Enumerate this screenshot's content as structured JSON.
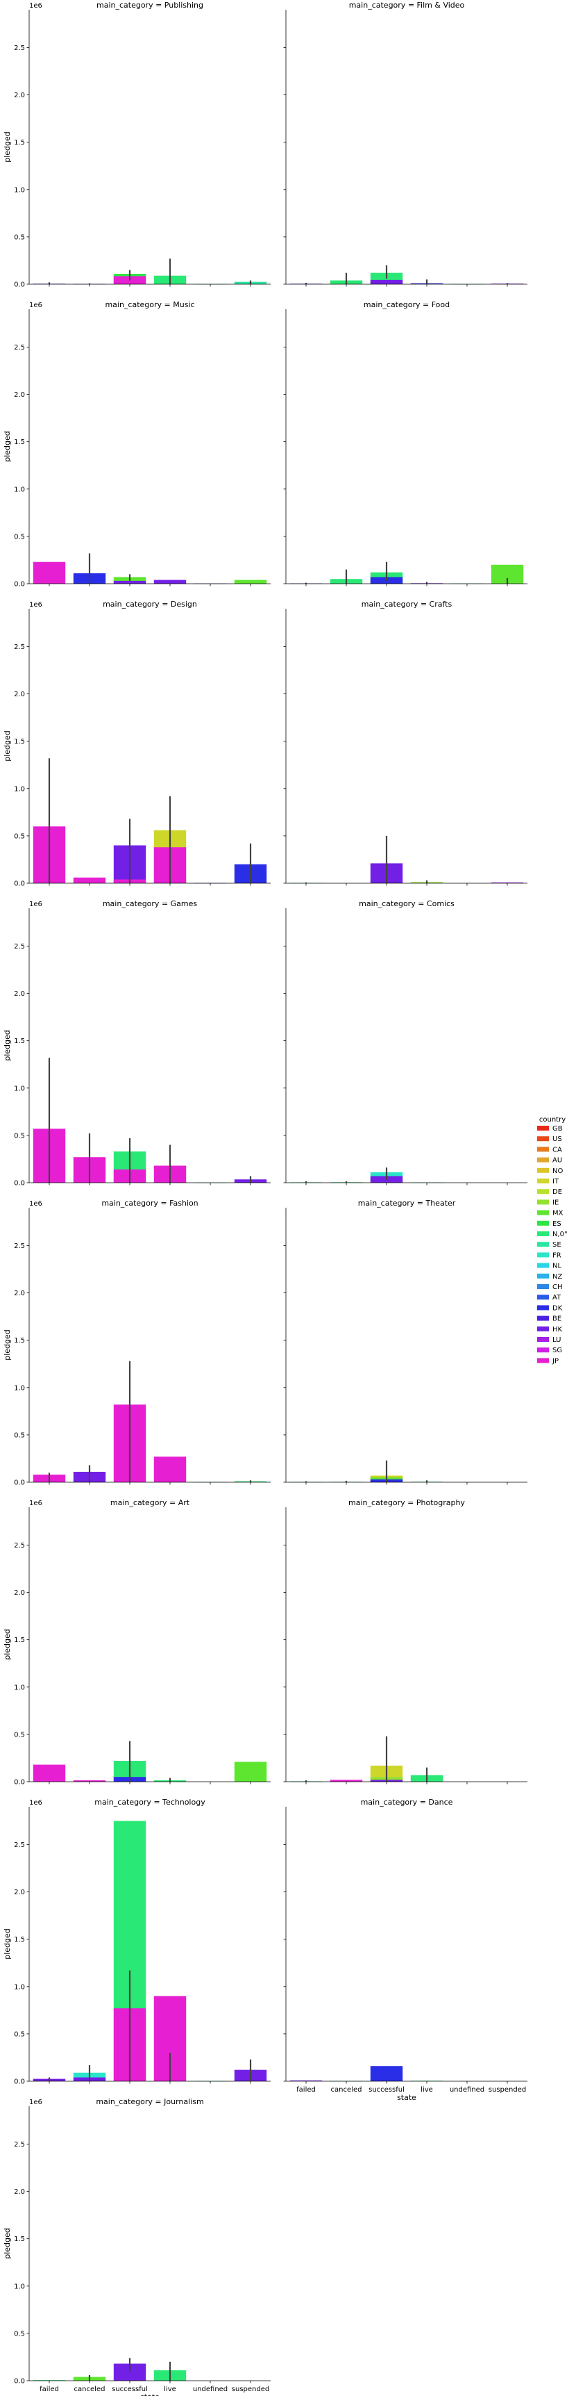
{
  "chart_data": {
    "type": "bar",
    "layout": "faceted-grid",
    "ylabel": "pledged",
    "xlabel": "state",
    "y_offset_label": "1e6",
    "ylim": [
      0,
      2900000
    ],
    "yticks": [
      0.0,
      0.5,
      1.0,
      1.5,
      2.0,
      2.5
    ],
    "categories": [
      "failed",
      "canceled",
      "successful",
      "live",
      "undefined",
      "suspended"
    ],
    "legend": {
      "title": "country",
      "placement": "right",
      "entries": [
        {
          "name": "GB",
          "color": "#e8291a"
        },
        {
          "name": "US",
          "color": "#ea4818"
        },
        {
          "name": "CA",
          "color": "#e77c1f"
        },
        {
          "name": "AU",
          "color": "#e2a530"
        },
        {
          "name": "NO",
          "color": "#dcc42a"
        },
        {
          "name": "IT",
          "color": "#cfd62a"
        },
        {
          "name": "DE",
          "color": "#b8e02c"
        },
        {
          "name": "IE",
          "color": "#93e22f"
        },
        {
          "name": "MX",
          "color": "#5ee52f"
        },
        {
          "name": "ES",
          "color": "#2fe544"
        },
        {
          "name": "N,0\"",
          "color": "#2ae875"
        },
        {
          "name": "SE",
          "color": "#2ae6a0"
        },
        {
          "name": "FR",
          "color": "#2ae6c8"
        },
        {
          "name": "NL",
          "color": "#2ad6e6"
        },
        {
          "name": "NZ",
          "color": "#2ab2e8"
        },
        {
          "name": "CH",
          "color": "#2a88e6"
        },
        {
          "name": "AT",
          "color": "#2a5ae6"
        },
        {
          "name": "DK",
          "color": "#2a2ee6"
        },
        {
          "name": "BE",
          "color": "#4a22e6"
        },
        {
          "name": "HK",
          "color": "#7320e6"
        },
        {
          "name": "LU",
          "color": "#a51fe6"
        },
        {
          "name": "SG",
          "color": "#d21ee6"
        },
        {
          "name": "JP",
          "color": "#e620d2"
        }
      ]
    },
    "facets": [
      {
        "title": "main_category = Publishing",
        "bars": [
          {
            "cat": "failed",
            "country": "DK",
            "value": 5000,
            "err": [
              0,
              20000
            ]
          },
          {
            "cat": "canceled",
            "country": "HK",
            "value": 3000,
            "err": [
              0,
              10000
            ]
          },
          {
            "cat": "successful",
            "country": "ES",
            "value": 110000,
            "err": [
              40000,
              150000
            ]
          },
          {
            "cat": "successful",
            "country": "JP",
            "value": 85000,
            "err": null
          },
          {
            "cat": "live",
            "country": "N,0\"",
            "value": 90000,
            "err": [
              0,
              270000
            ]
          },
          {
            "cat": "undefined",
            "country": "N,0\"",
            "value": 2000,
            "err": null
          },
          {
            "cat": "suspended",
            "country": "SE",
            "value": 25000,
            "err": [
              0,
              40000
            ]
          }
        ]
      },
      {
        "title": "main_category = Film & Video",
        "bars": [
          {
            "cat": "failed",
            "country": "DK",
            "value": 5000,
            "err": [
              0,
              15000
            ]
          },
          {
            "cat": "canceled",
            "country": "N,0\"",
            "value": 40000,
            "err": [
              0,
              120000
            ]
          },
          {
            "cat": "successful",
            "country": "N,0\"",
            "value": 120000,
            "err": [
              60000,
              200000
            ]
          },
          {
            "cat": "successful",
            "country": "HK",
            "value": 45000,
            "err": null
          },
          {
            "cat": "live",
            "country": "DK",
            "value": 10000,
            "err": [
              0,
              50000
            ]
          },
          {
            "cat": "undefined",
            "country": "N,0\"",
            "value": 2000,
            "err": null
          },
          {
            "cat": "suspended",
            "country": "HK",
            "value": 6000,
            "err": [
              0,
              12000
            ]
          }
        ]
      },
      {
        "title": "main_category = Music",
        "bars": [
          {
            "cat": "failed",
            "country": "JP",
            "value": 230000,
            "err": null
          },
          {
            "cat": "canceled",
            "country": "DK",
            "value": 110000,
            "err": [
              0,
              320000
            ]
          },
          {
            "cat": "successful",
            "country": "MX",
            "value": 70000,
            "err": [
              30000,
              100000
            ]
          },
          {
            "cat": "successful",
            "country": "HK",
            "value": 30000,
            "err": null
          },
          {
            "cat": "live",
            "country": "HK",
            "value": 40000,
            "err": null
          },
          {
            "cat": "undefined",
            "country": "HK",
            "value": 2000,
            "err": null
          },
          {
            "cat": "suspended",
            "country": "MX",
            "value": 40000,
            "err": null
          }
        ]
      },
      {
        "title": "main_category = Food",
        "bars": [
          {
            "cat": "failed",
            "country": "HK",
            "value": 3000,
            "err": [
              0,
              10000
            ]
          },
          {
            "cat": "canceled",
            "country": "N,0\"",
            "value": 50000,
            "err": [
              0,
              150000
            ]
          },
          {
            "cat": "successful",
            "country": "N,0\"",
            "value": 120000,
            "err": [
              30000,
              230000
            ]
          },
          {
            "cat": "successful",
            "country": "DK",
            "value": 70000,
            "err": null
          },
          {
            "cat": "live",
            "country": "HK",
            "value": 5000,
            "err": [
              0,
              20000
            ]
          },
          {
            "cat": "undefined",
            "country": "N,0\"",
            "value": 2000,
            "err": null
          },
          {
            "cat": "suspended",
            "country": "MX",
            "value": 200000,
            "err": [
              0,
              60000
            ]
          }
        ]
      },
      {
        "title": "main_category = Design",
        "bars": [
          {
            "cat": "failed",
            "country": "JP",
            "value": 600000,
            "err": [
              0,
              1320000
            ]
          },
          {
            "cat": "canceled",
            "country": "JP",
            "value": 60000,
            "err": null
          },
          {
            "cat": "successful",
            "country": "HK",
            "value": 400000,
            "err": [
              0,
              680000
            ]
          },
          {
            "cat": "successful",
            "country": "JP",
            "value": 40000,
            "err": null
          },
          {
            "cat": "live",
            "country": "IT",
            "value": 560000,
            "err": [
              0,
              920000
            ]
          },
          {
            "cat": "live",
            "country": "JP",
            "value": 380000,
            "err": null
          },
          {
            "cat": "undefined",
            "country": "HK",
            "value": 2000,
            "err": null
          },
          {
            "cat": "suspended",
            "country": "DK",
            "value": 200000,
            "err": [
              0,
              420000
            ]
          }
        ]
      },
      {
        "title": "main_category = Crafts",
        "bars": [
          {
            "cat": "failed",
            "country": "N,0\"",
            "value": 3000,
            "err": [
              0,
              8000
            ]
          },
          {
            "cat": "successful",
            "country": "HK",
            "value": 210000,
            "err": [
              0,
              500000
            ]
          },
          {
            "cat": "live",
            "country": "IE",
            "value": 12000,
            "err": [
              0,
              30000
            ]
          },
          {
            "cat": "suspended",
            "country": "LU",
            "value": 8000,
            "err": null
          }
        ]
      },
      {
        "title": "main_category = Games",
        "bars": [
          {
            "cat": "failed",
            "country": "JP",
            "value": 570000,
            "err": [
              0,
              1320000
            ]
          },
          {
            "cat": "canceled",
            "country": "JP",
            "value": 270000,
            "err": [
              0,
              520000
            ]
          },
          {
            "cat": "successful",
            "country": "N,0\"",
            "value": 330000,
            "err": [
              0,
              470000
            ]
          },
          {
            "cat": "successful",
            "country": "JP",
            "value": 140000,
            "err": null
          },
          {
            "cat": "live",
            "country": "JP",
            "value": 180000,
            "err": [
              0,
              400000
            ]
          },
          {
            "cat": "undefined",
            "country": "N,0\"",
            "value": 2000,
            "err": null
          },
          {
            "cat": "suspended",
            "country": "HK",
            "value": 35000,
            "err": [
              0,
              70000
            ]
          }
        ]
      },
      {
        "title": "main_category = Comics",
        "bars": [
          {
            "cat": "failed",
            "country": "N,0\"",
            "value": 4000,
            "err": [
              0,
              15000
            ]
          },
          {
            "cat": "canceled",
            "country": "N,0\"",
            "value": 5000,
            "err": [
              0,
              15000
            ]
          },
          {
            "cat": "successful",
            "country": "FR",
            "value": 110000,
            "err": [
              30000,
              160000
            ]
          },
          {
            "cat": "successful",
            "country": "HK",
            "value": 70000,
            "err": null
          },
          {
            "cat": "live",
            "country": "N,0\"",
            "value": 3000,
            "err": null
          }
        ]
      },
      {
        "title": "main_category = Fashion",
        "bars": [
          {
            "cat": "failed",
            "country": "JP",
            "value": 80000,
            "err": [
              0,
              100000
            ]
          },
          {
            "cat": "canceled",
            "country": "HK",
            "value": 110000,
            "err": [
              0,
              180000
            ]
          },
          {
            "cat": "successful",
            "country": "JP",
            "value": 820000,
            "err": [
              0,
              1280000
            ]
          },
          {
            "cat": "live",
            "country": "JP",
            "value": 270000,
            "err": null
          },
          {
            "cat": "undefined",
            "country": "N,0\"",
            "value": 2000,
            "err": null
          },
          {
            "cat": "suspended",
            "country": "N,0\"",
            "value": 10000,
            "err": [
              0,
              20000
            ]
          }
        ]
      },
      {
        "title": "main_category = Theater",
        "bars": [
          {
            "cat": "failed",
            "country": "N,0\"",
            "value": 3000,
            "err": [
              0,
              10000
            ]
          },
          {
            "cat": "canceled",
            "country": "N,0\"",
            "value": 4000,
            "err": [
              0,
              15000
            ]
          },
          {
            "cat": "successful",
            "country": "IT",
            "value": 70000,
            "err": [
              0,
              230000
            ]
          },
          {
            "cat": "successful",
            "country": "MX",
            "value": 50000,
            "err": null
          },
          {
            "cat": "successful",
            "country": "DK",
            "value": 30000,
            "err": null
          },
          {
            "cat": "live",
            "country": "N,0\"",
            "value": 5000,
            "err": [
              0,
              20000
            ]
          }
        ]
      },
      {
        "title": "main_category = Art",
        "bars": [
          {
            "cat": "failed",
            "country": "JP",
            "value": 180000,
            "err": null
          },
          {
            "cat": "canceled",
            "country": "JP",
            "value": 15000,
            "err": null
          },
          {
            "cat": "successful",
            "country": "N,0\"",
            "value": 220000,
            "err": [
              0,
              430000
            ]
          },
          {
            "cat": "successful",
            "country": "DK",
            "value": 50000,
            "err": null
          },
          {
            "cat": "live",
            "country": "N,0\"",
            "value": 15000,
            "err": [
              0,
              40000
            ]
          },
          {
            "cat": "suspended",
            "country": "MX",
            "value": 210000,
            "err": null
          }
        ]
      },
      {
        "title": "main_category = Photography",
        "bars": [
          {
            "cat": "failed",
            "country": "N,0\"",
            "value": 4000,
            "err": [
              0,
              15000
            ]
          },
          {
            "cat": "canceled",
            "country": "JP",
            "value": 20000,
            "err": null
          },
          {
            "cat": "successful",
            "country": "IT",
            "value": 170000,
            "err": [
              0,
              480000
            ]
          },
          {
            "cat": "successful",
            "country": "IE",
            "value": 50000,
            "err": null
          },
          {
            "cat": "successful",
            "country": "HK",
            "value": 20000,
            "err": null
          },
          {
            "cat": "live",
            "country": "N,0\"",
            "value": 70000,
            "err": [
              0,
              150000
            ]
          }
        ]
      },
      {
        "title": "main_category = Technology",
        "bars": [
          {
            "cat": "failed",
            "country": "HK",
            "value": 25000,
            "err": [
              0,
              40000
            ]
          },
          {
            "cat": "canceled",
            "country": "FR",
            "value": 90000,
            "err": [
              0,
              170000
            ]
          },
          {
            "cat": "canceled",
            "country": "HK",
            "value": 40000,
            "err": null
          },
          {
            "cat": "successful",
            "country": "N,0\"",
            "value": 2750000,
            "err": null
          },
          {
            "cat": "successful",
            "country": "JP",
            "value": 770000,
            "err": [
              0,
              1170000
            ]
          },
          {
            "cat": "live",
            "country": "JP",
            "value": 900000,
            "err": [
              0,
              300000
            ]
          },
          {
            "cat": "undefined",
            "country": "N,0\"",
            "value": 2000,
            "err": null
          },
          {
            "cat": "suspended",
            "country": "HK",
            "value": 120000,
            "err": [
              0,
              230000
            ]
          }
        ]
      },
      {
        "title": "main_category = Dance",
        "bars": [
          {
            "cat": "failed",
            "country": "HK",
            "value": 8000,
            "err": null
          },
          {
            "cat": "canceled",
            "country": "N,0\"",
            "value": 3000,
            "err": null
          },
          {
            "cat": "successful",
            "country": "DK",
            "value": 160000,
            "err": null
          },
          {
            "cat": "live",
            "country": "N,0\"",
            "value": 5000,
            "err": null
          }
        ]
      },
      {
        "title": "main_category = Journalism",
        "bars": [
          {
            "cat": "failed",
            "country": "N,0\"",
            "value": 6000,
            "err": null
          },
          {
            "cat": "canceled",
            "country": "MX",
            "value": 40000,
            "err": [
              0,
              60000
            ]
          },
          {
            "cat": "successful",
            "country": "HK",
            "value": 180000,
            "err": [
              100000,
              240000
            ]
          },
          {
            "cat": "live",
            "country": "N,0\"",
            "value": 110000,
            "err": [
              0,
              200000
            ]
          }
        ]
      }
    ]
  }
}
